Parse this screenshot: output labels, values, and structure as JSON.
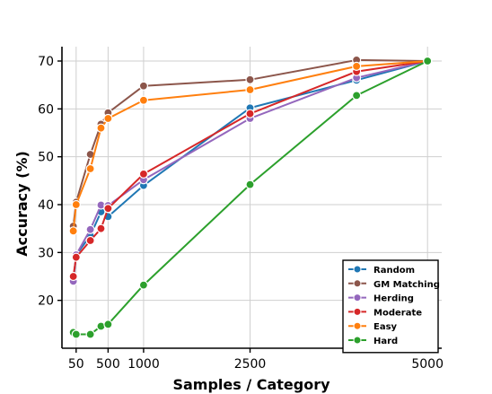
{
  "chart_data": {
    "type": "line",
    "title": "",
    "xlabel": "Samples / Category",
    "ylabel": "Accuracy (%)",
    "x_ticks": [
      50,
      500,
      1000,
      2500,
      5000
    ],
    "x_tick_labels": [
      "50",
      "500",
      "1000",
      "2500",
      "5000"
    ],
    "y_ticks": [
      20,
      30,
      40,
      50,
      60,
      70
    ],
    "y_tick_labels": [
      "20",
      "30",
      "40",
      "50",
      "60",
      "70"
    ],
    "xlim": [
      -150,
      5200
    ],
    "ylim": [
      10,
      73
    ],
    "grid": true,
    "legend_position": "bottom-right",
    "x": [
      10,
      50,
      250,
      400,
      500,
      1000,
      2500,
      4000,
      5000
    ],
    "series": [
      {
        "name": "Random",
        "color": "#1f77b4",
        "values": [
          24.0,
          29.5,
          33.5,
          38.5,
          37.5,
          44.0,
          60.2,
          66.0,
          70.0
        ]
      },
      {
        "name": "GM Matching",
        "color": "#8c564b",
        "values": [
          35.5,
          40.5,
          50.5,
          56.8,
          59.2,
          64.8,
          66.1,
          70.2,
          70.0
        ]
      },
      {
        "name": "Herding",
        "color": "#9467bd",
        "values": [
          24.0,
          29.5,
          34.8,
          39.9,
          39.8,
          45.2,
          58.0,
          66.5,
          70.0
        ]
      },
      {
        "name": "Moderate",
        "color": "#d62728",
        "values": [
          25.0,
          29.0,
          32.5,
          35.0,
          39.2,
          46.4,
          59.0,
          67.8,
          70.0
        ]
      },
      {
        "name": "Easy",
        "color": "#ff7f0e",
        "values": [
          34.5,
          40.0,
          47.5,
          56.0,
          58.0,
          61.8,
          64.0,
          68.9,
          70.0
        ]
      },
      {
        "name": "Hard",
        "color": "#2ca02c",
        "values": [
          13.3,
          12.9,
          12.9,
          14.6,
          15.0,
          23.2,
          44.2,
          62.8,
          70.0
        ]
      }
    ]
  }
}
